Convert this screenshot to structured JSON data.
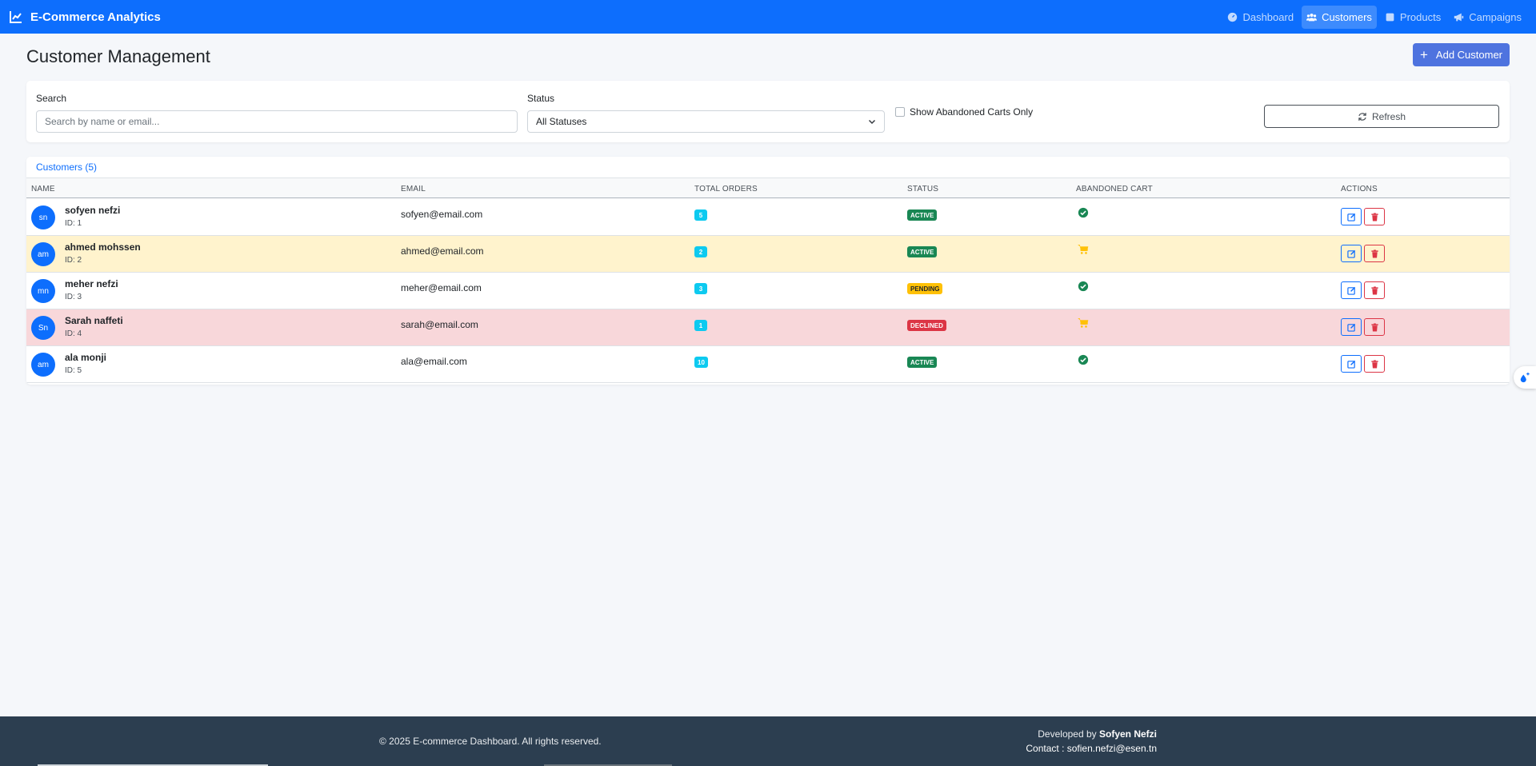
{
  "navbar": {
    "brand": "E-Commerce Analytics",
    "brand_color": "#0d6efd",
    "links": [
      {
        "label": "Dashboard",
        "icon": "dashboard-icon",
        "active": false
      },
      {
        "label": "Customers",
        "icon": "users-icon",
        "active": true
      },
      {
        "label": "Products",
        "icon": "box-icon",
        "active": false
      },
      {
        "label": "Campaigns",
        "icon": "megaphone-icon",
        "active": false
      }
    ]
  },
  "header": {
    "title": "Customer Management",
    "add_label": "Add Customer"
  },
  "filters": {
    "search_label": "Search",
    "search_placeholder": "Search by name or email...",
    "search_value": "",
    "status_label": "Status",
    "status_value": "All Statuses",
    "abandoned_label": "Show Abandoned Carts Only",
    "abandoned_checked": false,
    "refresh_label": "Refresh"
  },
  "table": {
    "title": "Customers (5)",
    "columns": [
      "Name",
      "Email",
      "Total Orders",
      "Status",
      "Abandoned Cart",
      "Actions"
    ],
    "rows": [
      {
        "initials": "sn",
        "name": "sofyen nefzi",
        "id": "ID: 1",
        "email": "sofyen@email.com",
        "orders": "5",
        "status": "ACTIVE",
        "cart": "check-circle-icon",
        "highlight": "none"
      },
      {
        "initials": "am",
        "name": "ahmed mohssen",
        "id": "ID: 2",
        "email": "ahmed@email.com",
        "orders": "2",
        "status": "ACTIVE",
        "cart": "cart-icon",
        "highlight": "warning"
      },
      {
        "initials": "mn",
        "name": "meher nefzi",
        "id": "ID: 3",
        "email": "meher@email.com",
        "orders": "3",
        "status": "PENDING",
        "cart": "check-circle-icon",
        "highlight": "none"
      },
      {
        "initials": "Sn",
        "name": "Sarah naffeti",
        "id": "ID: 4",
        "email": "sarah@email.com",
        "orders": "1",
        "status": "DECLINED",
        "cart": "cart-icon",
        "highlight": "danger"
      },
      {
        "initials": "am",
        "name": "ala monji",
        "id": "ID: 5",
        "email": "ala@email.com",
        "orders": "10",
        "status": "ACTIVE",
        "cart": "check-circle-icon",
        "highlight": "none"
      }
    ]
  },
  "footer": {
    "copyright": "© 2025 E-commerce Dashboard. All rights reserved.",
    "developed_prefix": "Developed by ",
    "developer": "Sofyen Nefzi",
    "contact": "Contact : sofien.nefzi@esen.tn"
  }
}
